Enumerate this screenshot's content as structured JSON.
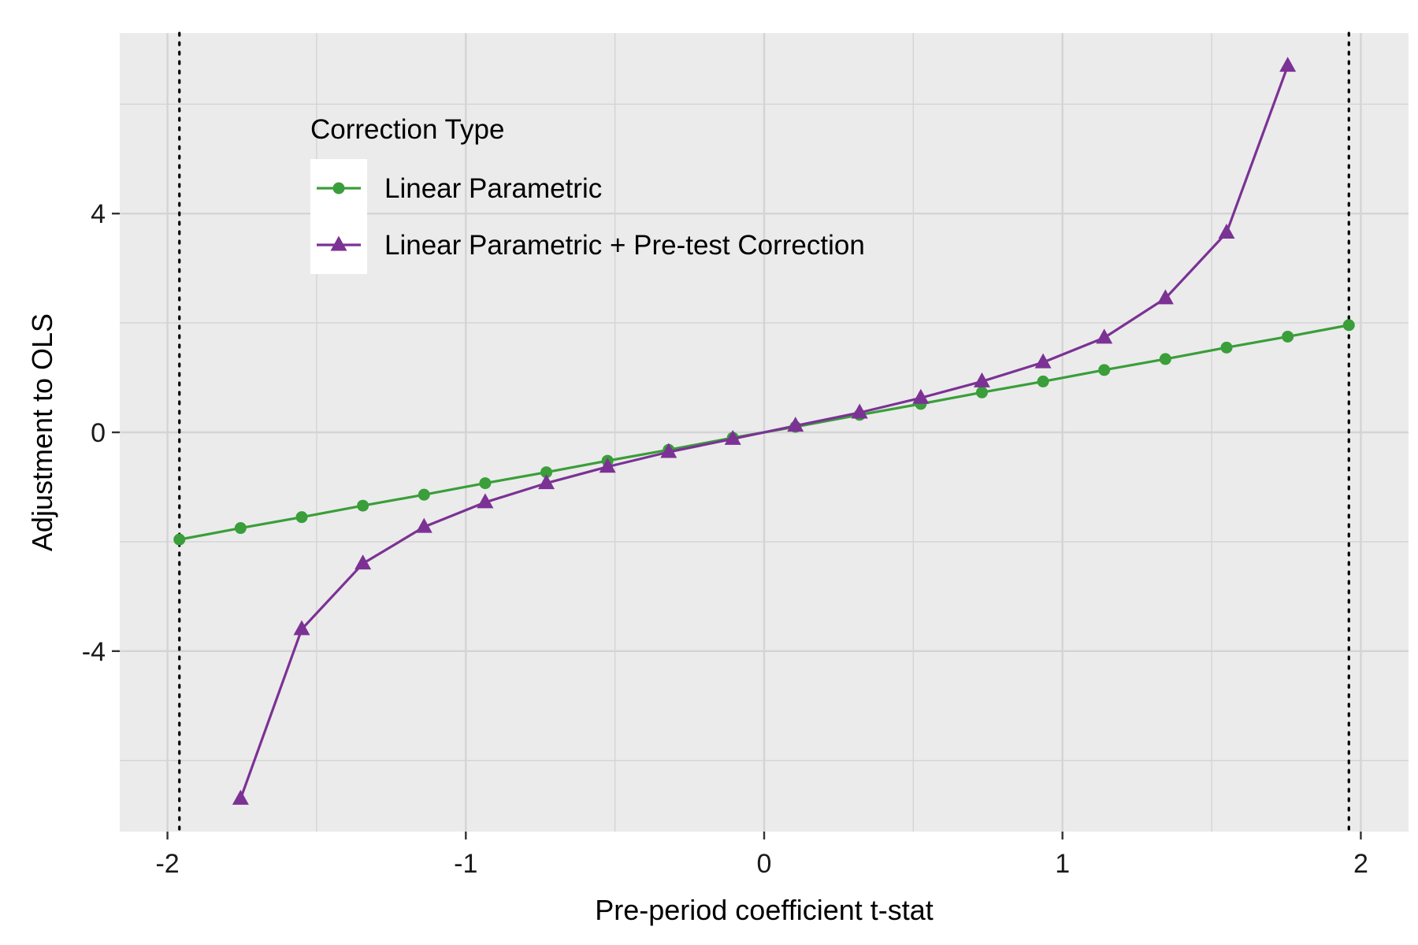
{
  "chart_data": {
    "type": "line",
    "title": "",
    "xlabel": "Pre-period coefficient t-stat",
    "ylabel": "Adjustment to OLS",
    "xlim": [
      -2.16,
      2.16
    ],
    "ylim": [
      -7.3,
      7.3
    ],
    "x_ticks": [
      -2,
      -1,
      0,
      1,
      2
    ],
    "x_tick_labels": [
      "-2",
      "-1",
      "0",
      "1",
      "2"
    ],
    "y_ticks": [
      -4,
      0,
      4
    ],
    "y_tick_labels": [
      "-4",
      "0",
      "4"
    ],
    "grid": true,
    "reference_lines": {
      "x": [
        -1.96,
        1.96
      ],
      "style": "dotted"
    },
    "legend": {
      "title": "Correction Type",
      "position": "top-left"
    },
    "series": [
      {
        "name": "Linear Parametric",
        "color": "#3a9e3a",
        "marker": "circle",
        "x": [
          -1.96,
          -1.755,
          -1.55,
          -1.345,
          -1.14,
          -0.935,
          -0.73,
          -0.525,
          -0.32,
          -0.105,
          0.105,
          0.32,
          0.525,
          0.73,
          0.935,
          1.14,
          1.345,
          1.55,
          1.755,
          1.96
        ],
        "y": [
          -1.96,
          -1.75,
          -1.55,
          -1.34,
          -1.14,
          -0.93,
          -0.73,
          -0.52,
          -0.32,
          -0.1,
          0.1,
          0.32,
          0.52,
          0.73,
          0.93,
          1.14,
          1.34,
          1.55,
          1.75,
          1.96
        ]
      },
      {
        "name": "Linear Parametric + Pre-test Correction",
        "color": "#7b3294",
        "marker": "triangle",
        "x": [
          -1.755,
          -1.55,
          -1.345,
          -1.14,
          -0.935,
          -0.73,
          -0.525,
          -0.32,
          -0.105,
          0.105,
          0.32,
          0.525,
          0.73,
          0.935,
          1.14,
          1.345,
          1.55,
          1.755
        ],
        "y": [
          -6.7,
          -3.6,
          -2.4,
          -1.73,
          -1.28,
          -0.93,
          -0.63,
          -0.36,
          -0.12,
          0.12,
          0.36,
          0.63,
          0.93,
          1.28,
          1.73,
          2.45,
          3.65,
          6.7
        ]
      }
    ]
  }
}
